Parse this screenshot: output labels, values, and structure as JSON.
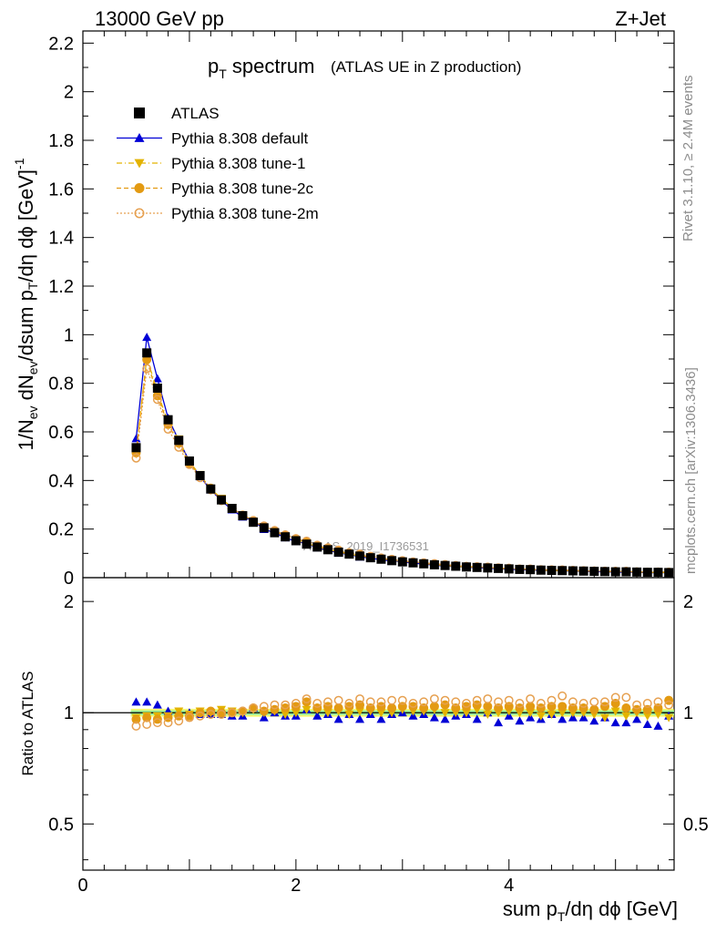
{
  "header": {
    "left": "13000 GeV pp",
    "right": "Z+Jet"
  },
  "title": {
    "main": "p",
    "main_sub": "T",
    "main_rest": " spectrum",
    "extra": "(ATLAS UE in Z production)"
  },
  "side_labels": {
    "rivet": "Rivet 3.1.10, ≥ 2.4M events",
    "mcplots": "mcplots.cern.ch [arXiv:1306.3436]"
  },
  "watermark": "ATLAS_2019_I1736531",
  "axes": {
    "main_ylabel": "1/N_ev dN_ev/dsum p_T/dη dϕ [GeV]^-1",
    "ratio_ylabel": "Ratio to ATLAS",
    "xlabel": "sum p_T/dη dϕ [GeV]",
    "main_yticks": [
      "0",
      "0.2",
      "0.4",
      "0.6",
      "0.8",
      "1",
      "1.2",
      "1.4",
      "1.6",
      "1.8",
      "2",
      "2.2"
    ],
    "ratio_yticks": [
      "0.5",
      "1",
      "2"
    ],
    "xticks": [
      "0",
      "2",
      "4"
    ]
  },
  "colors": {
    "atlas": "#000000",
    "default": "#0000d6",
    "tune1": "#e3b300",
    "tune2c": "#e39a12",
    "tune2m": "#e6a050",
    "band_inner": "#9cf29c",
    "band_outer": "#f5f500"
  },
  "legend": [
    {
      "label": "ATLAS",
      "key": "atlas"
    },
    {
      "label": "Pythia 8.308 default",
      "key": "default"
    },
    {
      "label": "Pythia 8.308 tune-1",
      "key": "tune1"
    },
    {
      "label": "Pythia 8.308 tune-2c",
      "key": "tune2c"
    },
    {
      "label": "Pythia 8.308 tune-2m",
      "key": "tune2m"
    }
  ],
  "chart_data": {
    "type": "scatter",
    "xlim": [
      0,
      5.55
    ],
    "ylim": [
      0,
      2.25
    ],
    "ratio_ylim": [
      0.375,
      2.32
    ],
    "ratio_log": true,
    "legend_position": "top-left",
    "x": [
      0.5,
      0.6,
      0.7,
      0.8,
      0.9,
      1.0,
      1.1,
      1.2,
      1.3,
      1.4,
      1.5,
      1.6,
      1.7,
      1.8,
      1.9,
      2.0,
      2.1,
      2.2,
      2.3,
      2.4,
      2.5,
      2.6,
      2.7,
      2.8,
      2.9,
      3.0,
      3.1,
      3.2,
      3.3,
      3.4,
      3.5,
      3.6,
      3.7,
      3.8,
      3.9,
      4.0,
      4.1,
      4.2,
      4.3,
      4.4,
      4.5,
      4.6,
      4.7,
      4.8,
      4.9,
      5.0,
      5.1,
      5.2,
      5.3,
      5.4,
      5.5
    ],
    "atlas": [
      0.535,
      0.925,
      0.78,
      0.65,
      0.565,
      0.48,
      0.42,
      0.365,
      0.32,
      0.285,
      0.255,
      0.228,
      0.205,
      0.185,
      0.168,
      0.152,
      0.138,
      0.126,
      0.115,
      0.105,
      0.097,
      0.089,
      0.082,
      0.076,
      0.07,
      0.065,
      0.061,
      0.057,
      0.053,
      0.05,
      0.047,
      0.044,
      0.042,
      0.04,
      0.038,
      0.036,
      0.034,
      0.033,
      0.031,
      0.03,
      0.029,
      0.028,
      0.027,
      0.026,
      0.025,
      0.024,
      0.024,
      0.023,
      0.022,
      0.022,
      0.021
    ],
    "series": [
      {
        "name": "Pythia 8.308 default",
        "key": "default",
        "ratio": [
          1.07,
          1.07,
          1.05,
          1.01,
          1.0,
          1.0,
          0.99,
          0.99,
          0.99,
          0.98,
          0.98,
          1.03,
          0.97,
          1.0,
          0.98,
          0.98,
          1.02,
          0.98,
          0.99,
          0.96,
          0.99,
          0.96,
          0.99,
          0.96,
          0.99,
          1.0,
          0.98,
          0.99,
          0.97,
          0.96,
          0.98,
          0.99,
          0.96,
          1.0,
          0.94,
          0.98,
          0.95,
          0.97,
          0.96,
          0.99,
          0.96,
          0.97,
          0.97,
          0.95,
          0.97,
          0.94,
          0.94,
          0.96,
          0.93,
          0.92,
          0.98
        ]
      },
      {
        "name": "Pythia 8.308 tune-1",
        "key": "tune1",
        "ratio": [
          0.97,
          0.98,
          0.98,
          0.98,
          1.01,
          0.99,
          1.01,
          1.0,
          1.02,
          1.01,
          1.0,
          1.02,
          1.0,
          1.01,
          0.99,
          1.0,
          1.02,
          1.02,
          1.0,
          1.01,
          0.99,
          1.01,
          1.01,
          1.0,
          1.0,
          1.02,
          1.01,
          1.01,
          1.02,
          1.0,
          1.0,
          1.0,
          1.02,
          0.99,
          1.0,
          1.01,
          1.0,
          1.0,
          0.98,
          0.99,
          1.0,
          1.0,
          1.0,
          0.99,
          0.97,
          1.01,
          0.98,
          1.0,
          0.98,
          0.99,
          0.97
        ]
      },
      {
        "name": "Pythia 8.308 tune-2c",
        "key": "tune2c",
        "ratio": [
          0.96,
          0.97,
          0.96,
          0.97,
          0.98,
          0.98,
          1.0,
          1.01,
          1.0,
          1.0,
          1.01,
          1.03,
          1.01,
          1.02,
          1.03,
          1.04,
          1.07,
          1.03,
          1.04,
          1.03,
          1.04,
          1.05,
          1.03,
          1.04,
          1.03,
          1.04,
          1.04,
          1.03,
          1.04,
          1.05,
          1.03,
          1.04,
          1.05,
          1.04,
          1.03,
          1.04,
          1.03,
          1.04,
          1.03,
          1.04,
          1.04,
          1.03,
          1.03,
          1.02,
          1.04,
          1.06,
          1.03,
          1.02,
          1.02,
          1.03,
          1.08
        ]
      },
      {
        "name": "Pythia 8.308 tune-2m",
        "key": "tune2m",
        "ratio": [
          0.92,
          0.93,
          0.94,
          0.94,
          0.95,
          0.97,
          0.98,
          0.99,
          0.99,
          1.0,
          1.01,
          1.03,
          1.04,
          1.05,
          1.05,
          1.06,
          1.09,
          1.06,
          1.07,
          1.08,
          1.06,
          1.09,
          1.07,
          1.07,
          1.08,
          1.08,
          1.06,
          1.07,
          1.09,
          1.08,
          1.07,
          1.06,
          1.08,
          1.09,
          1.07,
          1.08,
          1.06,
          1.09,
          1.06,
          1.08,
          1.11,
          1.07,
          1.06,
          1.07,
          1.07,
          1.1,
          1.1,
          1.05,
          1.06,
          1.07,
          1.05
        ]
      }
    ]
  }
}
